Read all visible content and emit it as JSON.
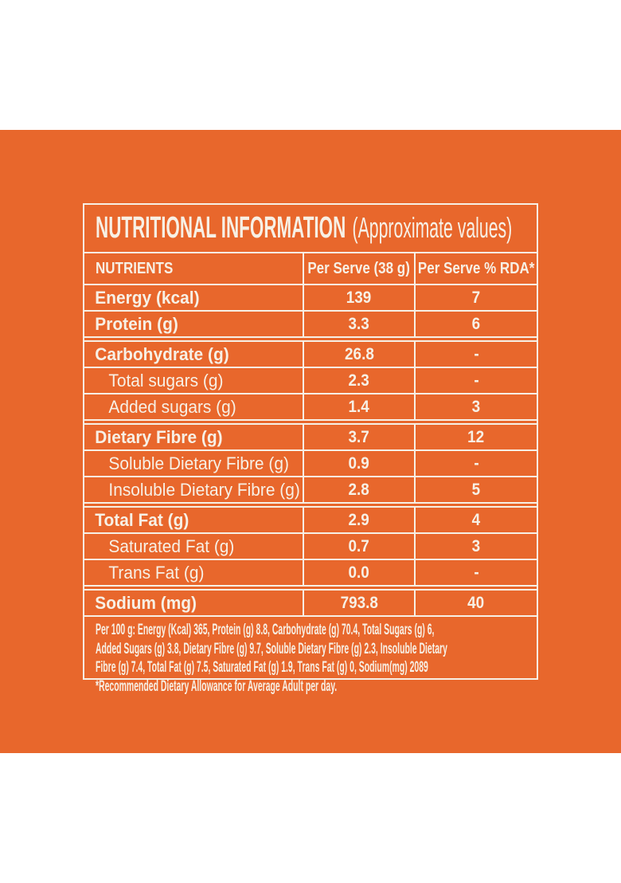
{
  "colors": {
    "page_background": "#FFFFFF",
    "panel_orange": "#E8672C",
    "text_and_lines_cream": "#F7F0E5"
  },
  "nutrition_label": {
    "title": "NUTRITIONAL INFORMATION",
    "title_note": "(Approximate values)",
    "header": {
      "nutrients": "NUTRIENTS",
      "per_serve": "Per Serve (38 g)",
      "per_serve_rda": "Per Serve % RDA*"
    },
    "rows": [
      {
        "nutrient": "Energy (kcal)",
        "per_serve": "139",
        "per_serve_rda": "7",
        "style": "major",
        "section_start": false
      },
      {
        "nutrient": "Protein (g)",
        "per_serve": "3.3",
        "per_serve_rda": "6",
        "style": "major",
        "section_start": false
      },
      {
        "nutrient": "Carbohydrate (g)",
        "per_serve": "26.8",
        "per_serve_rda": "-",
        "style": "major",
        "section_start": true
      },
      {
        "nutrient": "Total sugars (g)",
        "per_serve": "2.3",
        "per_serve_rda": "-",
        "style": "sub",
        "section_start": false
      },
      {
        "nutrient": "Added sugars (g)",
        "per_serve": "1.4",
        "per_serve_rda": "3",
        "style": "sub",
        "section_start": false
      },
      {
        "nutrient": "Dietary Fibre (g)",
        "per_serve": "3.7",
        "per_serve_rda": "12",
        "style": "major",
        "section_start": true
      },
      {
        "nutrient": "Soluble Dietary Fibre (g)",
        "per_serve": "0.9",
        "per_serve_rda": "-",
        "style": "sub",
        "section_start": false
      },
      {
        "nutrient": "Insoluble Dietary Fibre (g)",
        "per_serve": "2.8",
        "per_serve_rda": "5",
        "style": "sub",
        "section_start": false
      },
      {
        "nutrient": "Total Fat (g)",
        "per_serve": "2.9",
        "per_serve_rda": "4",
        "style": "major",
        "section_start": true
      },
      {
        "nutrient": "Saturated Fat (g)",
        "per_serve": "0.7",
        "per_serve_rda": "3",
        "style": "sub",
        "section_start": false
      },
      {
        "nutrient": "Trans Fat (g)",
        "per_serve": "0.0",
        "per_serve_rda": "-",
        "style": "sub",
        "section_start": false
      },
      {
        "nutrient": "Sodium (mg)",
        "per_serve": "793.8",
        "per_serve_rda": "40",
        "style": "major",
        "section_start": true
      }
    ],
    "footnote_lines": [
      "Per 100 g: Energy (Kcal) 365, Protein (g) 8.8, Carbohydrate (g) 70.4, Total Sugars (g) 6,",
      "Added Sugars (g) 3.8, Dietary Fibre (g) 9.7, Soluble Dietary Fibre (g) 2.3, Insoluble Dietary",
      "Fibre (g) 7.4, Total Fat (g) 7.5, Saturated Fat (g) 1.9, Trans Fat (g) 0, Sodium(mg) 2089",
      "*Recommended Dietary Allowance for Average Adult per day."
    ]
  }
}
